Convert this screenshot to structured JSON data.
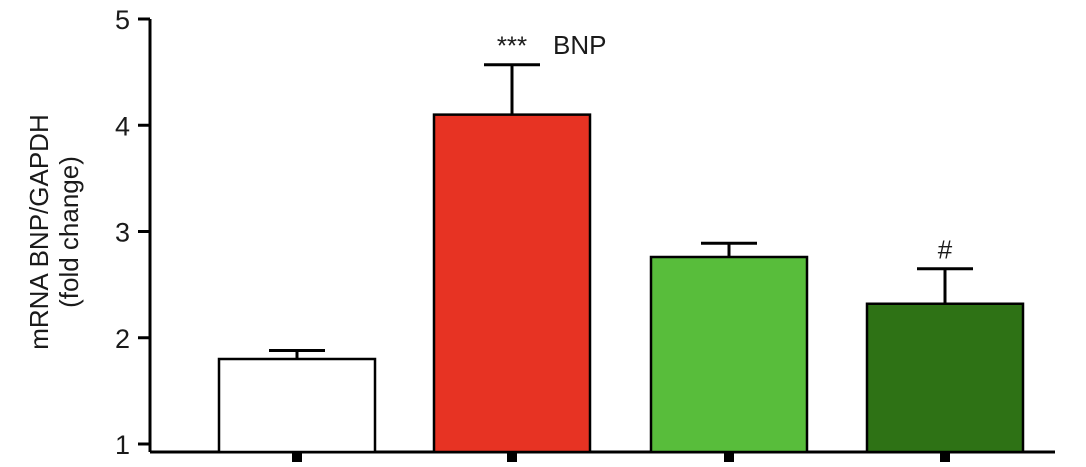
{
  "chart_data": {
    "type": "bar",
    "title": "",
    "ylabel": [
      "mRNA BNP/GAPDH",
      "(fold change)"
    ],
    "xlabel": "",
    "ylim": [
      1,
      5
    ],
    "yticks": [
      "1",
      "2",
      "3",
      "4",
      "5"
    ],
    "grid": false,
    "legend": "none",
    "bars": [
      {
        "value": 1.8,
        "error": 0.08,
        "color": "#ffffff",
        "annotation": ""
      },
      {
        "value": 4.1,
        "error": 0.47,
        "color": "#e73323",
        "annotation": "***"
      },
      {
        "value": 2.76,
        "error": 0.13,
        "color": "#58bd3b",
        "annotation": ""
      },
      {
        "value": 2.32,
        "error": 0.33,
        "color": "#2e7215",
        "annotation": "#"
      }
    ],
    "label": "BNP"
  }
}
